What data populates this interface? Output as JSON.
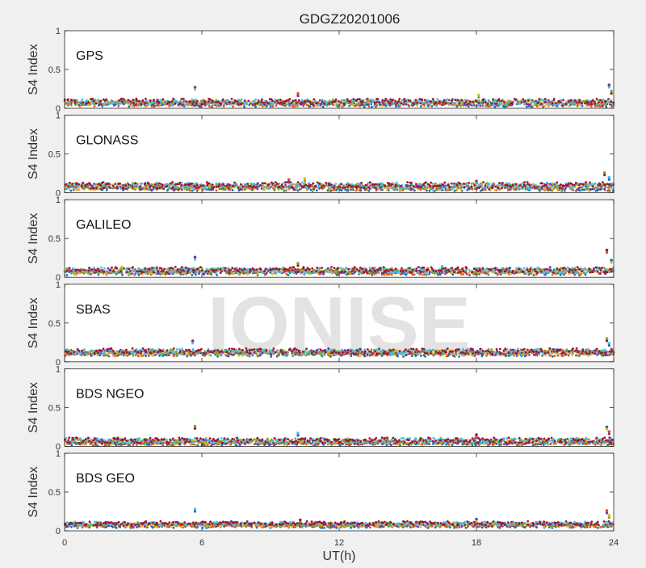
{
  "title": "GDGZ20201006",
  "xlabel": "UT(h)",
  "watermark": "IONISE",
  "colors": [
    "#0072BD",
    "#D95319",
    "#EDB120",
    "#7E2F8E",
    "#77AC30",
    "#4DBEEE",
    "#A2142F"
  ],
  "chart_data": [
    {
      "type": "scatter",
      "panel_label": "GPS",
      "ylabel": "S4 Index",
      "xlim": [
        0,
        24
      ],
      "ylim": [
        0,
        1
      ],
      "yticks": [
        0,
        0.5,
        1
      ],
      "ytick_labels": [
        "0",
        "0.5",
        "1"
      ],
      "xticks": [
        0,
        6,
        12,
        18,
        24
      ],
      "baseline": 0.07,
      "spread": 0.035,
      "spikes": [
        [
          5.7,
          0.27
        ],
        [
          10.2,
          0.19
        ],
        [
          18.1,
          0.17
        ],
        [
          23.8,
          0.3
        ],
        [
          23.9,
          0.22
        ]
      ]
    },
    {
      "type": "scatter",
      "panel_label": "GLONASS",
      "ylabel": "S4 Index",
      "xlim": [
        0,
        24
      ],
      "ylim": [
        0,
        1
      ],
      "yticks": [
        0,
        0.5,
        1
      ],
      "ytick_labels": [
        "0",
        "0.5",
        "1"
      ],
      "xticks": [
        0,
        6,
        12,
        18,
        24
      ],
      "baseline": 0.08,
      "spread": 0.04,
      "spikes": [
        [
          9.8,
          0.17
        ],
        [
          10.5,
          0.18
        ],
        [
          18.0,
          0.15
        ],
        [
          23.6,
          0.26
        ],
        [
          23.8,
          0.2
        ]
      ]
    },
    {
      "type": "scatter",
      "panel_label": "GALILEO",
      "ylabel": "S4 Index",
      "xlim": [
        0,
        24
      ],
      "ylim": [
        0,
        1
      ],
      "yticks": [
        0,
        0.5,
        1
      ],
      "ytick_labels": [
        "0",
        "0.5",
        "1"
      ],
      "xticks": [
        0,
        6,
        12,
        18,
        24
      ],
      "baseline": 0.08,
      "spread": 0.035,
      "spikes": [
        [
          2.5,
          0.13
        ],
        [
          5.7,
          0.26
        ],
        [
          10.2,
          0.18
        ],
        [
          16.5,
          0.14
        ],
        [
          23.7,
          0.35
        ],
        [
          23.9,
          0.22
        ]
      ]
    },
    {
      "type": "scatter",
      "panel_label": "SBAS",
      "ylabel": "S4 Index",
      "xlim": [
        0,
        24
      ],
      "ylim": [
        0,
        1
      ],
      "yticks": [
        0,
        0.5,
        1
      ],
      "ytick_labels": [
        "0",
        "0.5",
        "1"
      ],
      "xticks": [
        0,
        6,
        12,
        18,
        24
      ],
      "baseline": 0.12,
      "spread": 0.035,
      "spikes": [
        [
          5.6,
          0.27
        ],
        [
          23.7,
          0.3
        ],
        [
          23.8,
          0.24
        ]
      ]
    },
    {
      "type": "scatter",
      "panel_label": "BDS NGEO",
      "ylabel": "S4 Index",
      "xlim": [
        0,
        24
      ],
      "ylim": [
        0,
        1
      ],
      "yticks": [
        0,
        0.5,
        1
      ],
      "ytick_labels": [
        "0",
        "0.5",
        "1"
      ],
      "xticks": [
        0,
        6,
        12,
        18,
        24
      ],
      "baseline": 0.06,
      "spread": 0.035,
      "spikes": [
        [
          5.7,
          0.26
        ],
        [
          10.2,
          0.17
        ],
        [
          18.0,
          0.15
        ],
        [
          23.7,
          0.25
        ],
        [
          23.8,
          0.19
        ]
      ]
    },
    {
      "type": "scatter",
      "panel_label": "BDS GEO",
      "ylabel": "S4 Index",
      "xlim": [
        0,
        24
      ],
      "ylim": [
        0,
        1
      ],
      "yticks": [
        0,
        0.5,
        1
      ],
      "ytick_labels": [
        "0",
        "0.5",
        "1"
      ],
      "xticks": [
        0,
        6,
        12,
        18,
        24
      ],
      "baseline": 0.08,
      "spread": 0.025,
      "spikes": [
        [
          5.7,
          0.28
        ],
        [
          10.3,
          0.14
        ],
        [
          18.0,
          0.15
        ],
        [
          23.7,
          0.26
        ],
        [
          23.8,
          0.2
        ]
      ]
    }
  ]
}
